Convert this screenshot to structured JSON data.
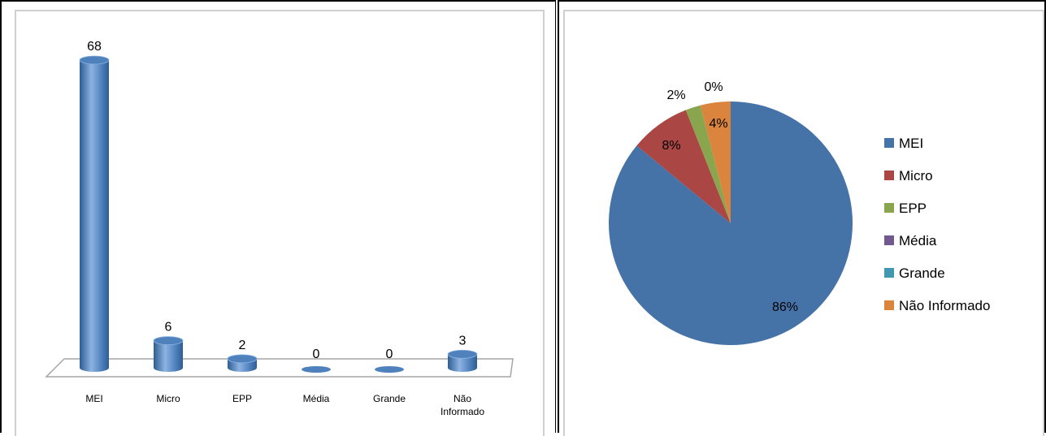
{
  "bar_chart": {
    "chart_data": {
      "type": "bar",
      "categories": [
        "MEI",
        "Micro",
        "EPP",
        "Média",
        "Grande",
        "Não Informado"
      ],
      "category_lines": [
        [
          "MEI"
        ],
        [
          "Micro"
        ],
        [
          "EPP"
        ],
        [
          "Média"
        ],
        [
          "Grande"
        ],
        [
          "Não",
          "Informado"
        ]
      ],
      "values": [
        68,
        6,
        2,
        0,
        0,
        3
      ],
      "data_labels": [
        "68",
        "6",
        "2",
        "0",
        "0",
        "3"
      ],
      "ylim": [
        0,
        68
      ],
      "grid": false,
      "legend": "none"
    },
    "colors": {
      "bar": "#4f81bd",
      "bar_dark": "#2e5d92",
      "bar_light": "#8db3e2",
      "floor": "#a6a6a6"
    }
  },
  "pie_chart": {
    "chart_data": {
      "type": "pie",
      "labels": [
        "MEI",
        "Micro",
        "EPP",
        "Média",
        "Grande",
        "Não Informado"
      ],
      "values": [
        86,
        8,
        2,
        0,
        0,
        4
      ],
      "data_labels": [
        "86%",
        "8%",
        "2%",
        "0%",
        "",
        "4%"
      ],
      "legend": "right"
    },
    "colors": [
      "#4572a7",
      "#aa4643",
      "#89a54e",
      "#71588f",
      "#4198af",
      "#db843d"
    ]
  }
}
